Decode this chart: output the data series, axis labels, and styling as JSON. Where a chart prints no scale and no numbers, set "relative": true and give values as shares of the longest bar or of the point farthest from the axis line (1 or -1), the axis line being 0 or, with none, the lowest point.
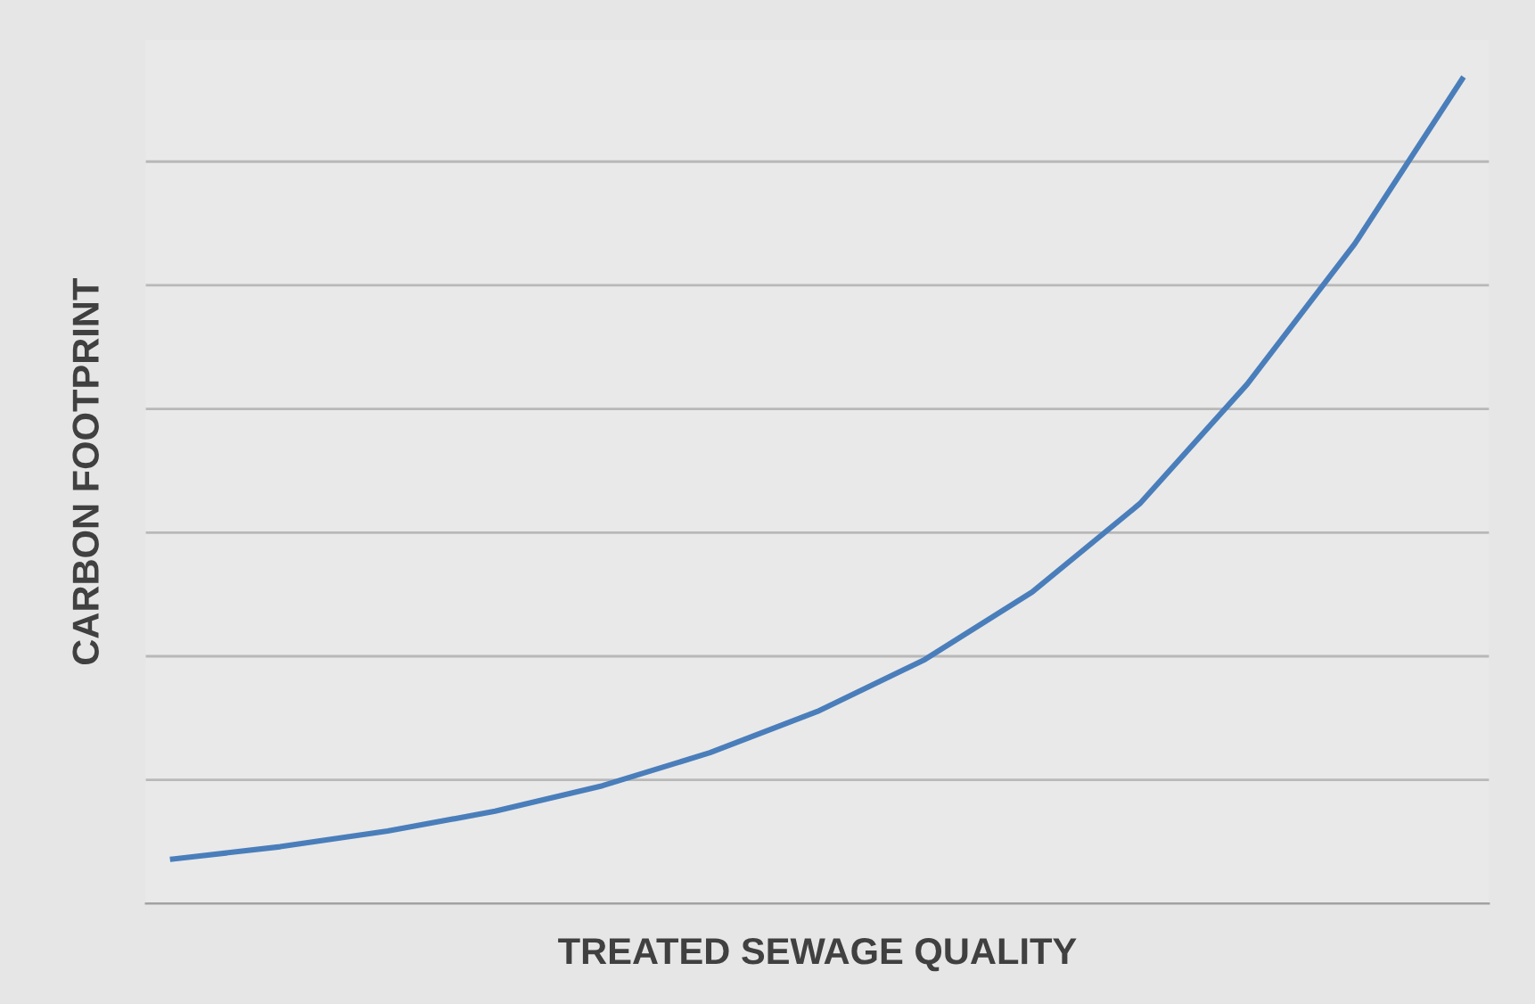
{
  "chart_data": {
    "type": "line",
    "relative": true,
    "xlabel": "TREATED SEWAGE QUALITY",
    "ylabel": "CARBON FOOTPRINT",
    "categories": [
      null,
      null,
      null,
      null,
      null,
      null,
      null,
      null,
      null,
      null,
      null,
      null,
      null
    ],
    "series": [
      {
        "color": "#4a7ebb",
        "values": [
          0.054,
          0.069,
          0.088,
          0.112,
          0.143,
          0.183,
          0.233,
          0.296,
          0.378,
          0.485,
          0.63,
          0.8,
          1
        ]
      }
    ],
    "grid": "y",
    "marker": "none",
    "line_style": "solid",
    "legend": false
  }
}
